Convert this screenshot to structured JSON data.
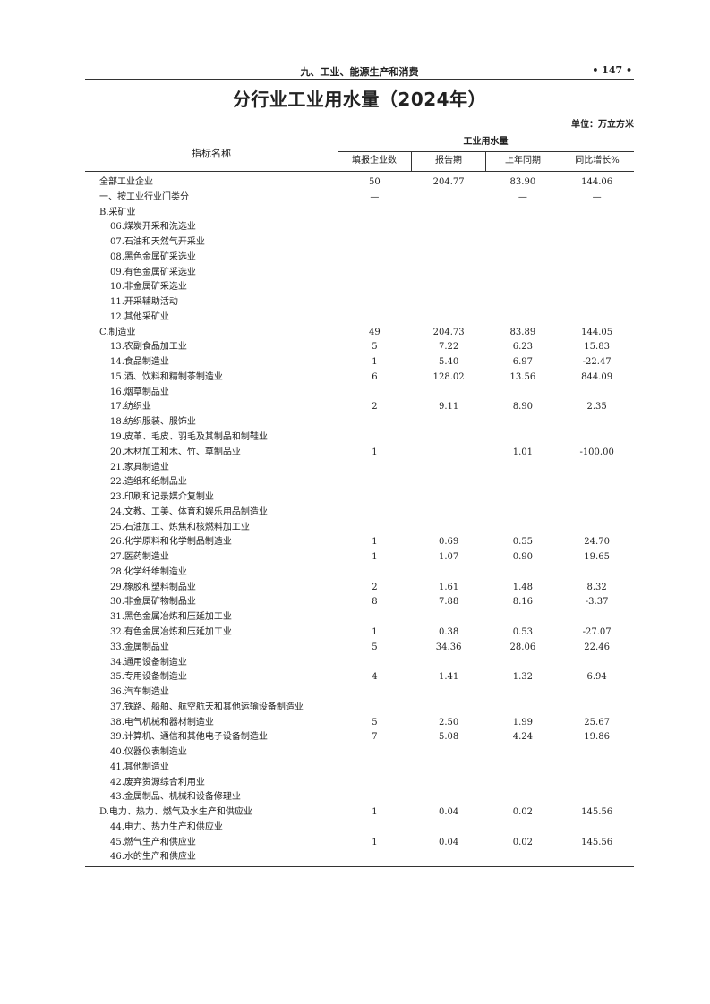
{
  "running_header": {
    "section": "九、工业、能源生产和消费",
    "page_number": "• 147 •"
  },
  "title": "分行业工业用水量（2024年）",
  "unit": "单位：万立方米",
  "table": {
    "name_header": "指标名称",
    "group_header": "工业用水量",
    "columns": [
      "填报企业数",
      "报告期",
      "上年同期",
      "同比增长%"
    ],
    "rows": [
      {
        "name": "全部工业企业",
        "level": 0,
        "values": [
          "50",
          "204.77",
          "83.90",
          "144.06"
        ]
      },
      {
        "name": "一、按工业行业门类分",
        "level": 0,
        "values": [
          "—",
          "",
          "—",
          "—"
        ]
      },
      {
        "name": "B.采矿业",
        "level": 0,
        "values": [
          "",
          "",
          "",
          ""
        ]
      },
      {
        "name": "06.煤炭开采和洗选业",
        "level": 1,
        "values": [
          "",
          "",
          "",
          ""
        ]
      },
      {
        "name": "07.石油和天然气开采业",
        "level": 1,
        "values": [
          "",
          "",
          "",
          ""
        ]
      },
      {
        "name": "08.黑色金属矿采选业",
        "level": 1,
        "values": [
          "",
          "",
          "",
          ""
        ]
      },
      {
        "name": "09.有色金属矿采选业",
        "level": 1,
        "values": [
          "",
          "",
          "",
          ""
        ]
      },
      {
        "name": "10.非金属矿采选业",
        "level": 1,
        "values": [
          "",
          "",
          "",
          ""
        ]
      },
      {
        "name": "11.开采辅助活动",
        "level": 1,
        "values": [
          "",
          "",
          "",
          ""
        ]
      },
      {
        "name": "12.其他采矿业",
        "level": 1,
        "values": [
          "",
          "",
          "",
          ""
        ]
      },
      {
        "name": "C.制造业",
        "level": 0,
        "values": [
          "49",
          "204.73",
          "83.89",
          "144.05"
        ]
      },
      {
        "name": "13.农副食品加工业",
        "level": 1,
        "values": [
          "5",
          "7.22",
          "6.23",
          "15.83"
        ]
      },
      {
        "name": "14.食品制造业",
        "level": 1,
        "values": [
          "1",
          "5.40",
          "6.97",
          "-22.47"
        ]
      },
      {
        "name": "15.酒、饮料和精制茶制造业",
        "level": 1,
        "values": [
          "6",
          "128.02",
          "13.56",
          "844.09"
        ]
      },
      {
        "name": "16.烟草制品业",
        "level": 1,
        "values": [
          "",
          "",
          "",
          ""
        ]
      },
      {
        "name": "17.纺织业",
        "level": 1,
        "values": [
          "2",
          "9.11",
          "8.90",
          "2.35"
        ]
      },
      {
        "name": "18.纺织服装、服饰业",
        "level": 1,
        "values": [
          "",
          "",
          "",
          ""
        ]
      },
      {
        "name": "19.皮革、毛皮、羽毛及其制品和制鞋业",
        "level": 1,
        "values": [
          "",
          "",
          "",
          ""
        ]
      },
      {
        "name": "20.木材加工和木、竹、草制品业",
        "level": 1,
        "values": [
          "1",
          "",
          "1.01",
          "-100.00"
        ]
      },
      {
        "name": "21.家具制造业",
        "level": 1,
        "values": [
          "",
          "",
          "",
          ""
        ]
      },
      {
        "name": "22.造纸和纸制品业",
        "level": 1,
        "values": [
          "",
          "",
          "",
          ""
        ]
      },
      {
        "name": "23.印刷和记录媒介复制业",
        "level": 1,
        "values": [
          "",
          "",
          "",
          ""
        ]
      },
      {
        "name": "24.文教、工美、体育和娱乐用品制造业",
        "level": 1,
        "values": [
          "",
          "",
          "",
          ""
        ]
      },
      {
        "name": "25.石油加工、炼焦和核燃料加工业",
        "level": 1,
        "values": [
          "",
          "",
          "",
          ""
        ]
      },
      {
        "name": "26.化学原料和化学制品制造业",
        "level": 1,
        "values": [
          "1",
          "0.69",
          "0.55",
          "24.70"
        ]
      },
      {
        "name": "27.医药制造业",
        "level": 1,
        "values": [
          "1",
          "1.07",
          "0.90",
          "19.65"
        ]
      },
      {
        "name": "28.化学纤维制造业",
        "level": 1,
        "values": [
          "",
          "",
          "",
          ""
        ]
      },
      {
        "name": "29.橡胶和塑料制品业",
        "level": 1,
        "values": [
          "2",
          "1.61",
          "1.48",
          "8.32"
        ]
      },
      {
        "name": "30.非金属矿物制品业",
        "level": 1,
        "values": [
          "8",
          "7.88",
          "8.16",
          "-3.37"
        ]
      },
      {
        "name": "31.黑色金属冶炼和压延加工业",
        "level": 1,
        "values": [
          "",
          "",
          "",
          ""
        ]
      },
      {
        "name": "32.有色金属冶炼和压延加工业",
        "level": 1,
        "values": [
          "1",
          "0.38",
          "0.53",
          "-27.07"
        ]
      },
      {
        "name": "33.金属制品业",
        "level": 1,
        "values": [
          "5",
          "34.36",
          "28.06",
          "22.46"
        ]
      },
      {
        "name": "34.通用设备制造业",
        "level": 1,
        "values": [
          "",
          "",
          "",
          ""
        ]
      },
      {
        "name": "35.专用设备制造业",
        "level": 1,
        "values": [
          "4",
          "1.41",
          "1.32",
          "6.94"
        ]
      },
      {
        "name": "36.汽车制造业",
        "level": 1,
        "values": [
          "",
          "",
          "",
          ""
        ]
      },
      {
        "name": "37.铁路、船舶、航空航天和其他运输设备制造业",
        "level": 1,
        "values": [
          "",
          "",
          "",
          ""
        ]
      },
      {
        "name": "38.电气机械和器材制造业",
        "level": 1,
        "values": [
          "5",
          "2.50",
          "1.99",
          "25.67"
        ]
      },
      {
        "name": "39.计算机、通信和其他电子设备制造业",
        "level": 1,
        "values": [
          "7",
          "5.08",
          "4.24",
          "19.86"
        ]
      },
      {
        "name": "40.仪器仪表制造业",
        "level": 1,
        "values": [
          "",
          "",
          "",
          ""
        ]
      },
      {
        "name": "41.其他制造业",
        "level": 1,
        "values": [
          "",
          "",
          "",
          ""
        ]
      },
      {
        "name": "42.废弃资源综合利用业",
        "level": 1,
        "values": [
          "",
          "",
          "",
          ""
        ]
      },
      {
        "name": "43.金属制品、机械和设备修理业",
        "level": 1,
        "values": [
          "",
          "",
          "",
          ""
        ]
      },
      {
        "name": "D.电力、热力、燃气及水生产和供应业",
        "level": 0,
        "values": [
          "1",
          "0.04",
          "0.02",
          "145.56"
        ]
      },
      {
        "name": "44.电力、热力生产和供应业",
        "level": 1,
        "values": [
          "",
          "",
          "",
          ""
        ]
      },
      {
        "name": "45.燃气生产和供应业",
        "level": 1,
        "values": [
          "1",
          "0.04",
          "0.02",
          "145.56"
        ]
      },
      {
        "name": "46.水的生产和供应业",
        "level": 1,
        "values": [
          "",
          "",
          "",
          ""
        ]
      }
    ]
  }
}
